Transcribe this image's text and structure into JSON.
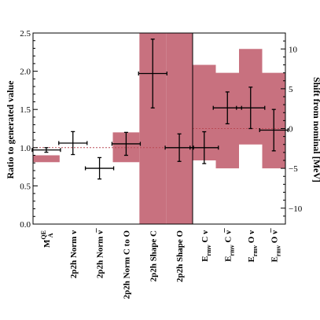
{
  "chart_data": {
    "type": "errorbar",
    "title": "",
    "left_panel": {
      "ylabel": "Ratio to generated value",
      "ylim": [
        0,
        2.5
      ],
      "yticks": [
        "0.0",
        "0.5",
        "1.0",
        "1.5",
        "2.0",
        "2.5"
      ],
      "yticks_values": [
        0,
        0.5,
        1.0,
        1.5,
        2.0,
        2.5
      ],
      "reference_line": 1.0,
      "categories": [
        {
          "main": "M",
          "sub": "A",
          "sup": "QE",
          "suffix": ""
        },
        {
          "main": "2p2h Norm ",
          "sub": "",
          "sup": "",
          "suffix": "ν"
        },
        {
          "main": "2p2h Norm ",
          "sub": "",
          "sup": "",
          "suffix": "ν̅"
        },
        {
          "main": "2p2h Norm C to O",
          "sub": "",
          "sup": "",
          "suffix": ""
        },
        {
          "main": "2p2h Shape C",
          "sub": "",
          "sup": "",
          "suffix": ""
        },
        {
          "main": "2p2h Shape O",
          "sub": "",
          "sup": "",
          "suffix": ""
        }
      ],
      "points": [
        {
          "value": 0.97,
          "err": 0.03
        },
        {
          "value": 1.06,
          "err": 0.15
        },
        {
          "value": 0.73,
          "err": 0.14
        },
        {
          "value": 1.05,
          "err": 0.15
        },
        {
          "value": 1.97,
          "err": 0.45
        },
        {
          "value": 1.0,
          "err": 0.18
        }
      ],
      "bands": [
        {
          "low": 0.81,
          "high": 0.9
        },
        null,
        null,
        {
          "low": 0.81,
          "high": 1.2
        },
        {
          "low": 0.0,
          "high": 2.5
        },
        {
          "low": 0.0,
          "high": 2.5
        }
      ]
    },
    "right_panel": {
      "ylabel": "Shift from nominal [MeV]",
      "ylim": [
        -12,
        12
      ],
      "yticks": [
        "−10",
        "−5",
        "0",
        "5",
        "10"
      ],
      "yticks_values": [
        -10,
        -5,
        0,
        5,
        10
      ],
      "reference_line": 0,
      "categories": [
        {
          "main": "E",
          "sub": "rmv",
          "sup": "",
          "suffix": " C ν"
        },
        {
          "main": "E",
          "sub": "rmv",
          "sup": "",
          "suffix": " C ν̅"
        },
        {
          "main": "E",
          "sub": "rmv",
          "sup": "",
          "suffix": " O ν"
        },
        {
          "main": "E",
          "sub": "rmv",
          "sup": "",
          "suffix": " O ν̅"
        }
      ],
      "points": [
        {
          "value": -2.4,
          "err": 2.0
        },
        {
          "value": 2.6,
          "err": 2.0
        },
        {
          "value": 2.6,
          "err": 2.6
        },
        {
          "value": -0.2,
          "err": 2.6
        }
      ],
      "bands": [
        {
          "low": -4.0,
          "high": 8.0
        },
        {
          "low": -5.0,
          "high": 7.0
        },
        {
          "low": -2.0,
          "high": 10.0
        },
        {
          "low": -5.0,
          "high": 7.0
        }
      ]
    },
    "colors": {
      "band": "#c8717f",
      "marker": "#000000",
      "reference": "#b94a55"
    }
  }
}
